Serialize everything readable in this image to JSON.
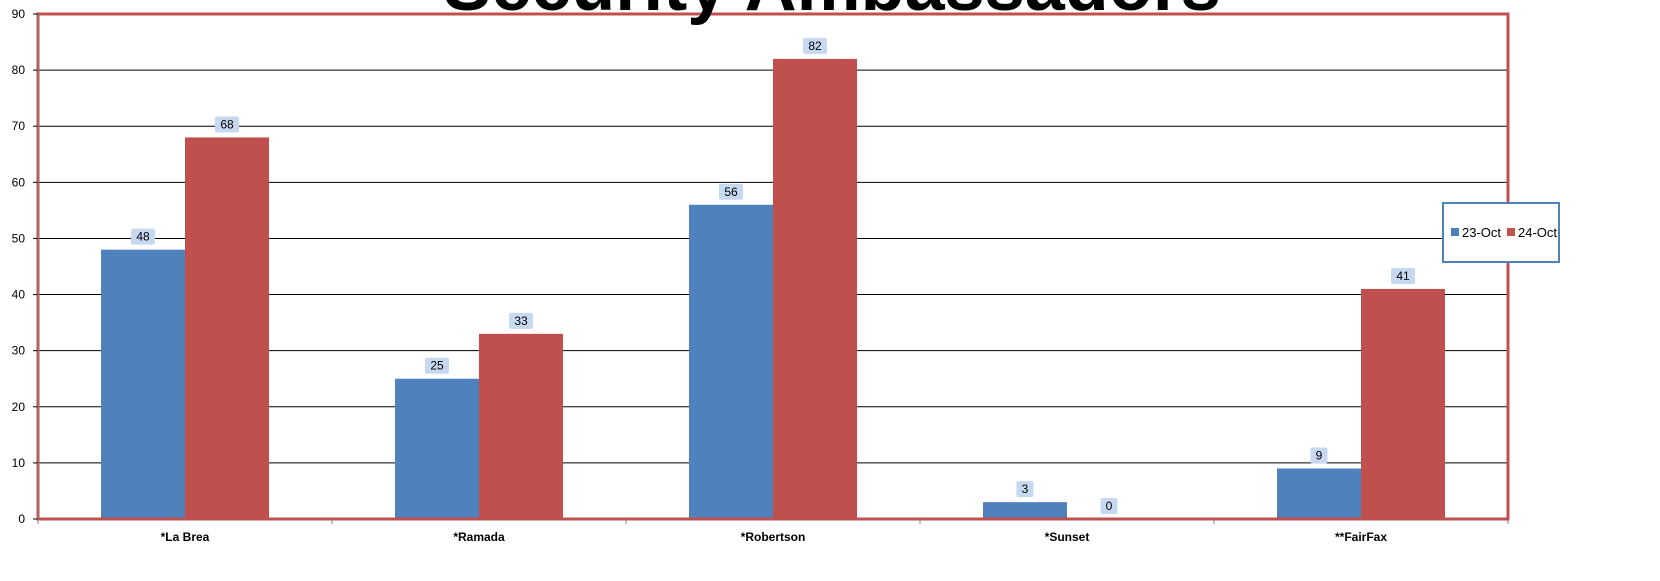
{
  "chart_data": {
    "type": "bar",
    "title": "Security Ambassadors",
    "categories": [
      "*La Brea",
      "*Ramada",
      "*Robertson",
      "*Sunset",
      "**FairFax"
    ],
    "series": [
      {
        "name": "23-Oct",
        "values": [
          48,
          25,
          56,
          3,
          9
        ],
        "color": "#4F81BD"
      },
      {
        "name": "24-Oct",
        "values": [
          68,
          33,
          82,
          0,
          41
        ],
        "color": "#C0504D"
      }
    ],
    "ylim": [
      0,
      90
    ],
    "y_ticks": [
      0,
      10,
      20,
      30,
      40,
      50,
      60,
      70,
      80,
      90
    ],
    "grid": true,
    "legend_position": "right",
    "data_labels": true,
    "plot_border_color": "#C0504D",
    "legend_border_color": "#4F81BD",
    "data_label_bg": "#C6D9F1"
  }
}
